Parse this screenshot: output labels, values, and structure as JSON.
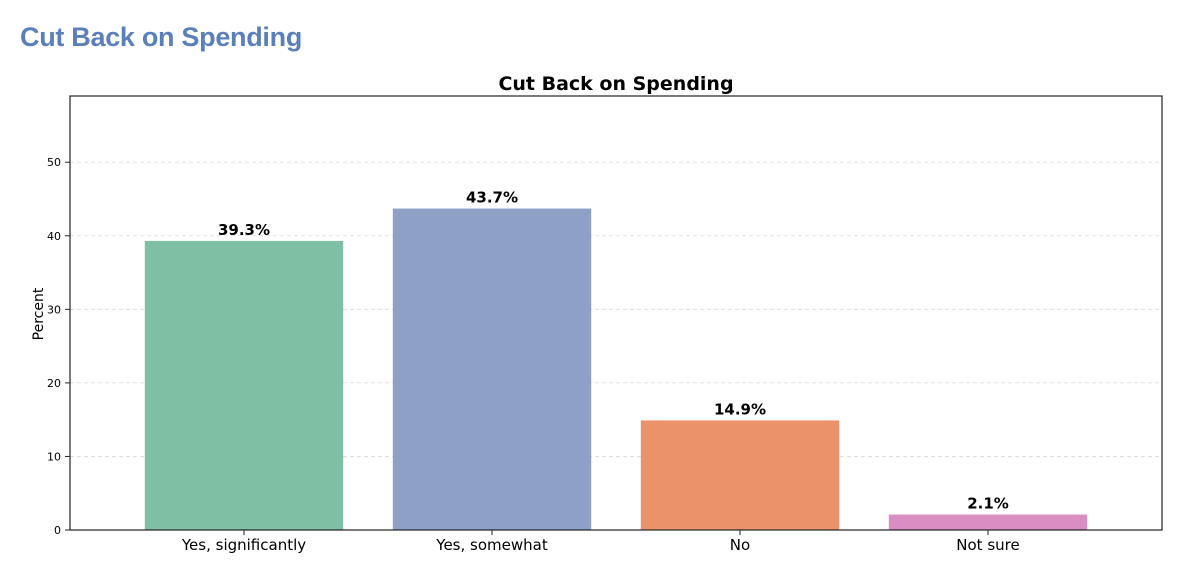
{
  "page": {
    "heading": "Cut Back on Spending"
  },
  "chart_data": {
    "type": "bar",
    "title": "Cut Back on Spending",
    "xlabel": "",
    "ylabel": "Percent",
    "categories": [
      "Yes, significantly",
      "Yes, somewhat",
      "No",
      "Not sure"
    ],
    "values": [
      39.3,
      43.7,
      14.9,
      2.1
    ],
    "data_labels": [
      "39.3%",
      "43.7%",
      "14.9%",
      "2.1%"
    ],
    "colors": [
      "#7fbfa4",
      "#8fa0c7",
      "#eb926b",
      "#da8dc3"
    ],
    "ylim": [
      0,
      59
    ],
    "yticks": [
      0,
      10,
      20,
      30,
      40,
      50
    ],
    "grid": true,
    "legend": "none"
  }
}
